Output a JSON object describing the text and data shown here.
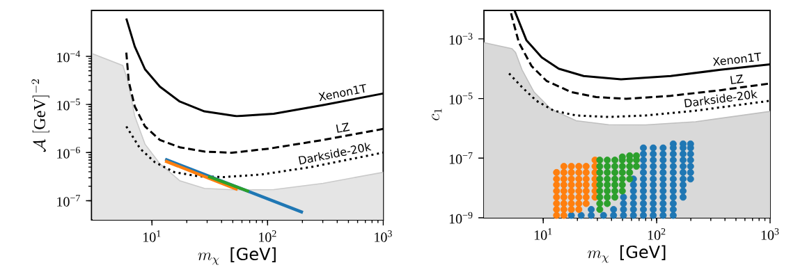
{
  "chart_data": [
    {
      "type": "line",
      "xlabel": "m_\\chi\\;\\;\\textsf{[GeV]}",
      "ylabel": "\\mathcal{A}\\;[\\mathrm{GeV}]^{-2}",
      "log": "xy",
      "xlim": [
        3,
        1000
      ],
      "ylim": [
        4e-08,
        0.0009
      ],
      "xticks": [
        {
          "value": 10,
          "label": "10$^{1}$"
        },
        {
          "value": 100,
          "label": "10$^{2}$"
        },
        {
          "value": 1000,
          "label": "10$^{3}$"
        }
      ],
      "yticks": [
        {
          "value": 1e-07,
          "label": "10$^{−7}$"
        },
        {
          "value": 1e-06,
          "label": "10$^{−6}$"
        },
        {
          "value": 1e-05,
          "label": "10$^{−5}$"
        },
        {
          "value": 0.0001,
          "label": "10$^{−4}$"
        }
      ],
      "series": [
        {
          "type": "area",
          "color": "#e5e5e5",
          "x": [
            3.06,
            5.6,
            6.2,
            7.1,
            8.7,
            11.7,
            17.4,
            28.4,
            54,
            113,
            302,
            1000
          ],
          "values": [
            0.000113,
            6.45e-05,
            3e-05,
            5.7e-06,
            1.5e-06,
            5.9e-07,
            2.6e-07,
            1.8e-07,
            1.67e-07,
            1.7e-07,
            2.3e-07,
            3.9e-07
          ]
        },
        {
          "name": "Xenon1T",
          "color": "#000000",
          "line_style": "solid",
          "x": [
            6.0,
            7.1,
            8.7,
            11.7,
            17.4,
            28.4,
            54,
            113,
            302,
            1000
          ],
          "values": [
            0.00061,
            0.00016,
            5.4e-05,
            2.35e-05,
            1.15e-05,
            7.2e-06,
            5.7e-06,
            6.4e-06,
            9.7e-06,
            1.69e-05
          ]
        },
        {
          "name": "LZ",
          "color": "#000000",
          "line_style": "dashed",
          "x": [
            6.0,
            6.3,
            7.1,
            8.7,
            11.7,
            17.4,
            28.4,
            49,
            103,
            302,
            1000
          ],
          "values": [
            0.00012,
            3e-05,
            9.1e-06,
            3.5e-06,
            1.83e-06,
            1.29e-06,
            1.05e-06,
            9.9e-07,
            1.21e-06,
            1.83e-06,
            3.1e-06
          ]
        },
        {
          "name": "Darkside-20k",
          "color": "#000000",
          "line_style": "dotted",
          "x": [
            6.0,
            7.9,
            10.6,
            15.7,
            25.8,
            42,
            88,
            237,
            1000
          ],
          "values": [
            3.5e-06,
            1.21e-06,
            6.3e-07,
            3.9e-07,
            3.2e-07,
            3.1e-07,
            3.5e-07,
            5e-07,
            1e-06
          ]
        },
        {
          "type": "line",
          "color": "#1f77b4",
          "x": [
            13.0,
            202
          ],
          "values": [
            7.3e-07,
            5.7e-08
          ]
        },
        {
          "type": "line",
          "color": "#ff7f0e",
          "x": [
            13.0,
            55
          ],
          "values": [
            6.7e-07,
            1.7e-07
          ]
        },
        {
          "type": "line",
          "color": "#2ca02c",
          "x": [
            30.6,
            69
          ],
          "values": [
            3.2e-07,
            1.55e-07
          ]
        }
      ]
    },
    {
      "type": "line",
      "xlabel": "m_\\chi\\;\\;\\textsf{[GeV]}",
      "ylabel": "c_1",
      "log": "xy",
      "xlim": [
        3,
        1000
      ],
      "ylim": [
        1e-09,
        0.009
      ],
      "xticks": [
        {
          "value": 10,
          "label": "10$^{1}$"
        },
        {
          "value": 100,
          "label": "10$^{2}$"
        },
        {
          "value": 1000,
          "label": "10$^{3}$"
        }
      ],
      "yticks": [
        {
          "value": 1e-09,
          "label": "10$^{−9}$"
        },
        {
          "value": 1e-07,
          "label": "10$^{−7}$"
        },
        {
          "value": 1e-05,
          "label": "10$^{−5}$"
        },
        {
          "value": 0.001,
          "label": "10$^{−3}$"
        }
      ],
      "series": [
        {
          "type": "area",
          "color": "#d9d9d9",
          "x": [
            3.0,
            5.3,
            5.7,
            6.5,
            8.3,
            11.8,
            19.5,
            37.7,
            80,
            220,
            1000
          ],
          "values": [
            0.00075,
            0.00047,
            0.00035,
            9.2e-05,
            1.64e-05,
            4.3e-06,
            1.8e-06,
            1.32e-06,
            1.3e-06,
            1.66e-06,
            3.7e-06
          ]
        },
        {
          "name": "Xenon1T",
          "color": "#000000",
          "line_style": "solid",
          "x": [
            5.6,
            7.1,
            9.7,
            13.7,
            22.7,
            48.5,
            133,
            365,
            1000
          ],
          "values": [
            0.0087,
            0.00091,
            0.00024,
            0.0001,
            5.7e-05,
            4.4e-05,
            5.7e-05,
            9.2e-05,
            0.00014
          ]
        },
        {
          "name": "LZ",
          "color": "#000000",
          "line_style": "dashed",
          "x": [
            5.2,
            6.1,
            7.9,
            10.7,
            17.7,
            29.3,
            53.7,
            133,
            365,
            1000
          ],
          "values": [
            0.0072,
            0.00075,
            0.000122,
            3.9e-05,
            1.64e-05,
            1.12e-05,
            9.8e-06,
            1.23e-05,
            1.9e-05,
            3.2e-05
          ]
        },
        {
          "name": "Darkside-20k",
          "color": "#000000",
          "line_style": "dotted",
          "x": [
            5.0,
            6.5,
            8.7,
            12.4,
            19.5,
            37.7,
            80,
            220,
            1000
          ],
          "values": [
            6.9e-05,
            2.4e-05,
            8.4e-06,
            3.9e-06,
            2.7e-06,
            2.4e-06,
            2.7e-06,
            3.9e-06,
            8.4e-06
          ]
        },
        {
          "type": "scatter",
          "marker": "circle",
          "color": "#1f77b4",
          "x": [
            17.7,
            21.6,
            26.5,
            26.5,
            34.0,
            41.7,
            41.7,
            51.0,
            51.0,
            51.0,
            51.0,
            62.4,
            62.4,
            62.4,
            62.4,
            62.4,
            62.4,
            62.4,
            76.4,
            76.4,
            76.4,
            76.4,
            76.4,
            76.4,
            76.4,
            76.4,
            76.4,
            76.4,
            76.4,
            76.4,
            93.3,
            93.3,
            93.3,
            93.3,
            93.3,
            93.3,
            93.3,
            93.3,
            93.3,
            93.3,
            93.3,
            93.3,
            114,
            114,
            114,
            114,
            114,
            114,
            114,
            114,
            114,
            114,
            114,
            114,
            140,
            140,
            140,
            140,
            140,
            140,
            140,
            140,
            140,
            140,
            140,
            140,
            140,
            171,
            171,
            171,
            171,
            171,
            171,
            171,
            171,
            171,
            171,
            199,
            199,
            199,
            199,
            199,
            199,
            199
          ],
          "values": [
            1.2e-09,
            1.2e-09,
            1.2e-09,
            1.9e-09,
            1.2e-09,
            1.2e-09,
            1.9e-09,
            1.2e-09,
            1.9e-09,
            3e-09,
            4.9e-09,
            1.2e-09,
            1.9e-09,
            3e-09,
            4.9e-09,
            7.9e-09,
            1.27e-08,
            2e-08,
            1.2e-09,
            1.9e-09,
            3e-09,
            4.9e-09,
            7.9e-09,
            1.27e-08,
            2e-08,
            3.3e-08,
            5.3e-08,
            8.6e-08,
            1.38e-07,
            2.2e-07,
            1.2e-09,
            1.9e-09,
            3e-09,
            4.9e-09,
            7.9e-09,
            1.27e-08,
            2e-08,
            3.3e-08,
            5.3e-08,
            8.6e-08,
            1.38e-07,
            2.2e-07,
            1.2e-09,
            1.9e-09,
            3e-09,
            4.9e-09,
            7.9e-09,
            1.27e-08,
            2e-08,
            3.3e-08,
            5.3e-08,
            8.6e-08,
            1.38e-07,
            2.2e-07,
            1.2e-09,
            1.9e-09,
            3e-09,
            4.9e-09,
            7.9e-09,
            1.27e-08,
            2e-08,
            3.3e-08,
            5.3e-08,
            8.6e-08,
            1.38e-07,
            2.2e-07,
            3e-07,
            4.9e-09,
            7.9e-09,
            1.27e-08,
            2e-08,
            3.3e-08,
            5.3e-08,
            8.6e-08,
            1.38e-07,
            2.2e-07,
            3e-07,
            2e-08,
            3.3e-08,
            5.3e-08,
            8.6e-08,
            1.38e-07,
            2.2e-07,
            3e-07
          ]
        },
        {
          "type": "scatter",
          "marker": "circle",
          "color": "#ff7f0e",
          "x": [
            13.1,
            13.1,
            13.1,
            13.1,
            13.1,
            13.1,
            13.1,
            13.1,
            15.2,
            15.2,
            15.2,
            15.2,
            15.2,
            15.2,
            15.2,
            15.2,
            15.2,
            17.7,
            17.7,
            17.7,
            17.7,
            17.7,
            17.7,
            17.7,
            17.7,
            20.6,
            20.6,
            20.6,
            20.6,
            20.6,
            20.6,
            20.6,
            20.6,
            23.9,
            23.9,
            23.9,
            23.9,
            23.9,
            23.9,
            23.9,
            28.6,
            28.6,
            28.6,
            28.6,
            28.6,
            28.6,
            28.6
          ],
          "values": [
            1.2e-09,
            1.9e-09,
            3e-09,
            4.9e-09,
            7.9e-09,
            1.27e-08,
            2e-08,
            3.3e-08,
            1.2e-09,
            1.9e-09,
            3e-09,
            4.9e-09,
            7.9e-09,
            1.27e-08,
            2e-08,
            3.3e-08,
            5.3e-08,
            1.9e-09,
            3e-09,
            4.9e-09,
            7.9e-09,
            1.27e-08,
            2e-08,
            3.3e-08,
            5.3e-08,
            1.9e-09,
            3e-09,
            4.9e-09,
            7.9e-09,
            1.27e-08,
            2e-08,
            3.3e-08,
            5.3e-08,
            3e-09,
            4.9e-09,
            7.9e-09,
            1.27e-08,
            2e-08,
            3.3e-08,
            5.3e-08,
            4.9e-09,
            7.9e-09,
            1.27e-08,
            2e-08,
            3.3e-08,
            5.3e-08,
            8.6e-08
          ]
        },
        {
          "type": "scatter",
          "marker": "circle",
          "color": "#2ca02c",
          "x": [
            31.5,
            31.5,
            31.5,
            31.5,
            31.5,
            31.5,
            31.5,
            31.5,
            31.5,
            36.7,
            36.7,
            36.7,
            36.7,
            36.7,
            36.7,
            36.7,
            36.7,
            42.8,
            42.8,
            42.8,
            42.8,
            42.8,
            42.8,
            42.8,
            49.8,
            49.8,
            49.8,
            49.8,
            49.8,
            49.8,
            49.8,
            57.8,
            57.8,
            57.8,
            57.8,
            57.8,
            66.3,
            66.3,
            66.3
          ],
          "values": [
            1.9e-09,
            3e-09,
            4.9e-09,
            7.9e-09,
            1.27e-08,
            2e-08,
            3.3e-08,
            5.3e-08,
            8.6e-08,
            3e-09,
            4.9e-09,
            7.9e-09,
            1.27e-08,
            2e-08,
            3.3e-08,
            5.3e-08,
            8.6e-08,
            4.9e-09,
            7.9e-09,
            1.27e-08,
            2e-08,
            3.3e-08,
            5.3e-08,
            8.6e-08,
            7.9e-09,
            1.27e-08,
            2e-08,
            3.3e-08,
            5.3e-08,
            8.6e-08,
            1.1e-07,
            2e-08,
            3.3e-08,
            5.3e-08,
            8.6e-08,
            1.2e-07,
            5.3e-08,
            8.6e-08,
            1.2e-07
          ]
        }
      ]
    }
  ]
}
